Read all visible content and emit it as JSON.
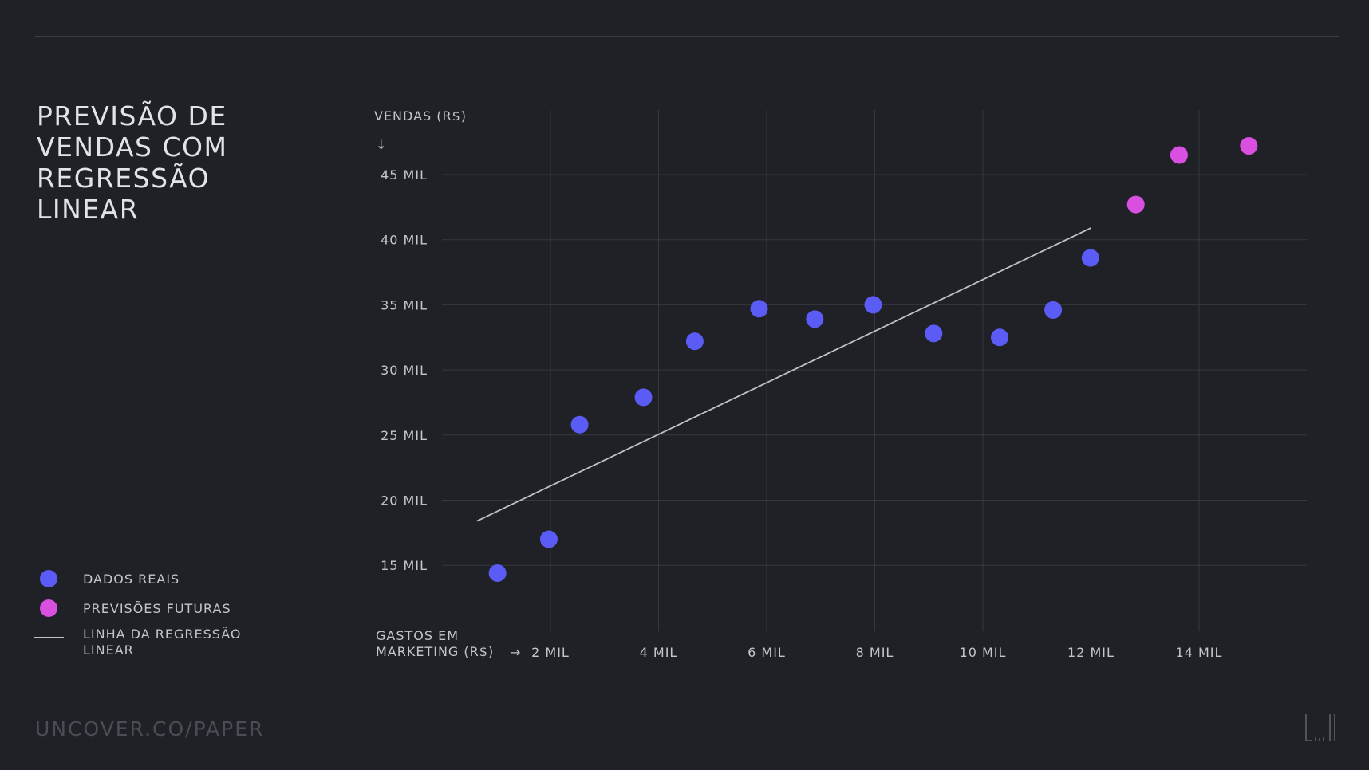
{
  "title": "PREVISÃO DE VENDAS COM REGRESSÃO LINEAR",
  "footer": "UNCOVER.CO/PAPER",
  "legend": [
    {
      "label": "DADOS REAIS",
      "color": "#5b5cf6"
    },
    {
      "label": "PREVISÕES FUTURAS",
      "color": "#d94fe0"
    },
    {
      "label": "LINHA DA REGRESSÃO LINEAR",
      "color": "#bfc1c6"
    }
  ],
  "chart_data": {
    "type": "scatter",
    "xlabel": "GASTOS EM MARKETING (R$)",
    "ylabel": "VENDAS (R$)",
    "xlim": [
      0,
      16000
    ],
    "ylim": [
      10000,
      50000
    ],
    "x_ticks": [
      2000,
      4000,
      6000,
      8000,
      10000,
      12000,
      14000
    ],
    "x_tick_labels": [
      "2 MIL",
      "4 MIL",
      "6 MIL",
      "8 MIL",
      "10 MIL",
      "12 MIL",
      "14 MIL"
    ],
    "y_ticks": [
      15000,
      20000,
      25000,
      30000,
      35000,
      40000,
      45000
    ],
    "y_tick_labels": [
      "15 MIL",
      "20 MIL",
      "25 MIL",
      "30 MIL",
      "35 MIL",
      "40 MIL",
      "45 MIL"
    ],
    "grid": true,
    "series": [
      {
        "name": "DADOS REAIS",
        "color": "#5b5cf6",
        "points": [
          {
            "x": 1020,
            "y": 14400
          },
          {
            "x": 1970,
            "y": 17000
          },
          {
            "x": 2540,
            "y": 25800
          },
          {
            "x": 3720,
            "y": 27900
          },
          {
            "x": 4670,
            "y": 32200
          },
          {
            "x": 5860,
            "y": 34700
          },
          {
            "x": 6890,
            "y": 33900
          },
          {
            "x": 7970,
            "y": 35000
          },
          {
            "x": 9090,
            "y": 32800
          },
          {
            "x": 10310,
            "y": 32500
          },
          {
            "x": 11300,
            "y": 34600
          },
          {
            "x": 11990,
            "y": 38600
          }
        ]
      },
      {
        "name": "PREVISÕES FUTURAS",
        "color": "#d94fe0",
        "points": [
          {
            "x": 12830,
            "y": 42700
          },
          {
            "x": 13630,
            "y": 46500
          },
          {
            "x": 14920,
            "y": 47200
          }
        ]
      }
    ],
    "regression_line": {
      "name": "LINHA DA REGRESSÃO LINEAR",
      "color": "#bfc1c6",
      "points": [
        {
          "x": 640,
          "y": 18400
        },
        {
          "x": 12000,
          "y": 40900
        }
      ]
    }
  }
}
